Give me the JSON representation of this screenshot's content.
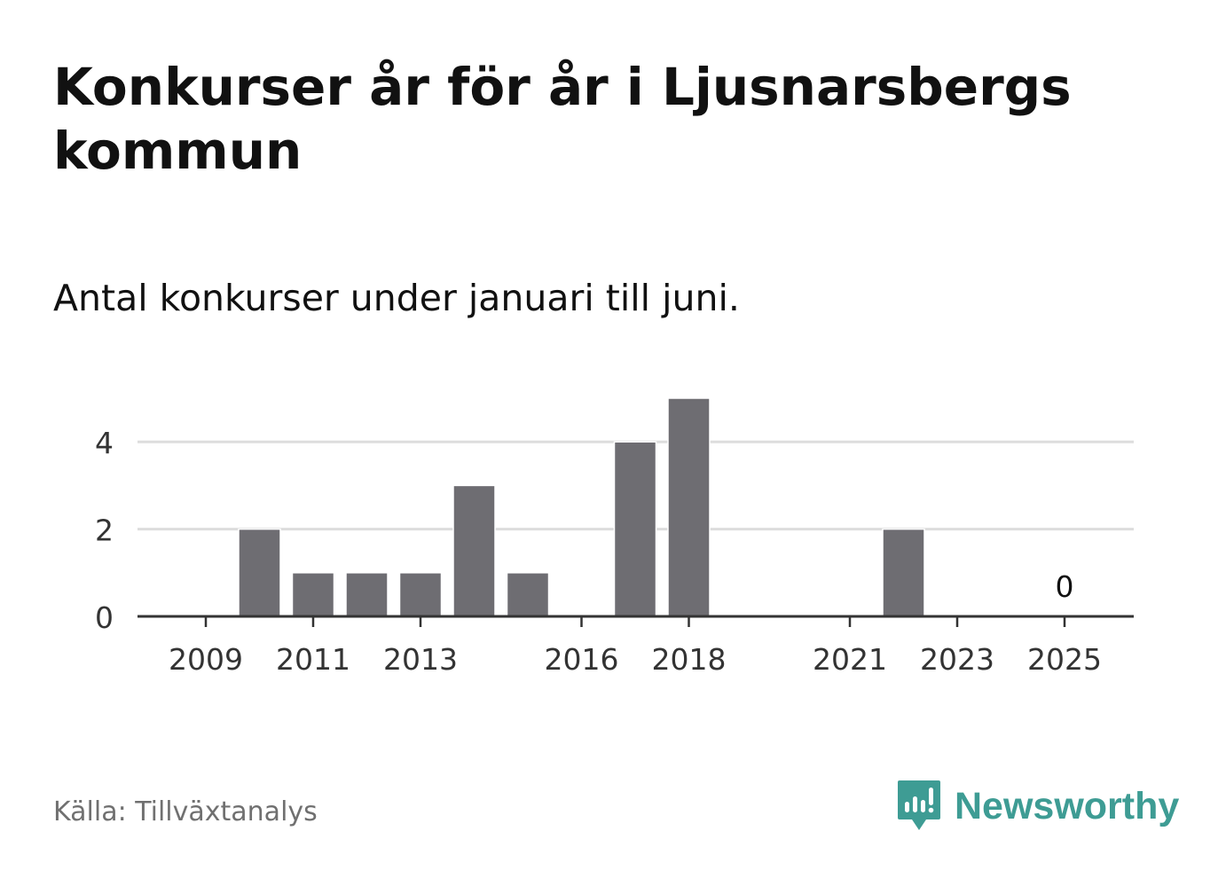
{
  "title": "Konkurser år för år i Ljusnarsbergs kommun",
  "subtitle": "Antal konkurser under januari till juni.",
  "source": "Källa: Tillväxtanalys",
  "brand": {
    "name": "Newsworthy",
    "icon": "newsworthy-logo-icon",
    "color": "#3e9c94"
  },
  "chart_data": {
    "type": "bar",
    "categories": [
      2009,
      2010,
      2011,
      2012,
      2013,
      2014,
      2015,
      2016,
      2017,
      2018,
      2019,
      2020,
      2021,
      2022,
      2023,
      2024,
      2025
    ],
    "values": [
      0,
      2,
      1,
      1,
      1,
      3,
      1,
      0,
      4,
      5,
      0,
      0,
      0,
      2,
      0,
      0,
      0
    ],
    "x_tick_labels": [
      "2009",
      "2011",
      "2013",
      "2016",
      "2018",
      "2021",
      "2023",
      "2025"
    ],
    "y_ticks": [
      0,
      2,
      4
    ],
    "ylim": [
      0,
      5
    ],
    "grid": true,
    "bar_color": "#6e6d72",
    "annotations": [
      {
        "category": 2025,
        "text": "0"
      }
    ],
    "xlabel": "",
    "ylabel": ""
  }
}
